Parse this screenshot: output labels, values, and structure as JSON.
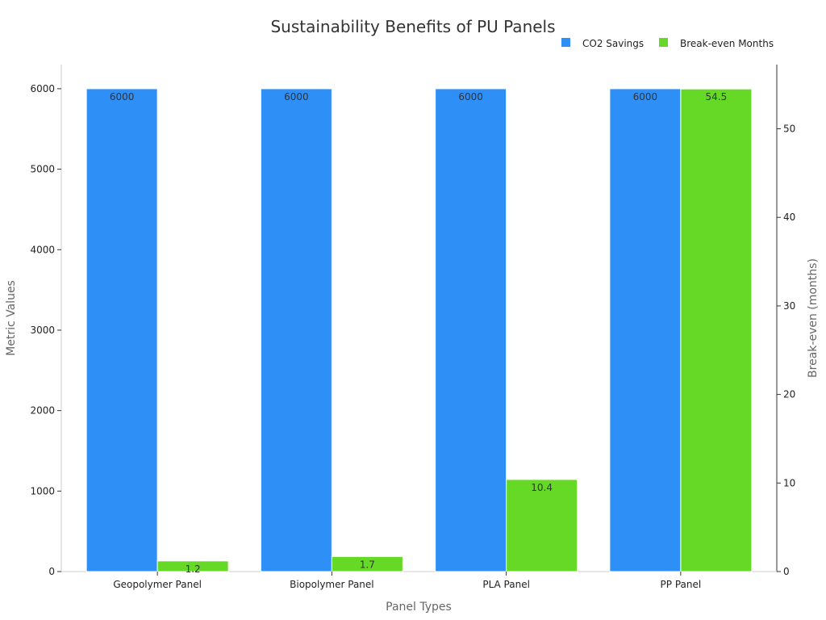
{
  "chart_data": {
    "type": "bar",
    "title": "Sustainability Benefits of PU Panels",
    "xlabel": "Panel Types",
    "ylabel": "Metric Values",
    "ylabel_right": "Break-even (months)",
    "categories": [
      "Geopolymer Panel",
      "Biopolymer Panel",
      "PLA Panel",
      "PP Panel"
    ],
    "ylim": [
      0,
      6300
    ],
    "ylim_right": [
      0,
      57.25
    ],
    "yticks": [
      0,
      1000,
      2000,
      3000,
      4000,
      5000,
      6000
    ],
    "yticks_right": [
      0,
      10,
      20,
      30,
      40,
      50
    ],
    "grid": false,
    "legend_position": "top-right",
    "series": [
      {
        "name": "CO2 Savings",
        "axis": "left",
        "color": "#2e8ff7",
        "values": [
          6000,
          6000,
          6000,
          6000
        ],
        "labels": [
          "6000",
          "6000",
          "6000",
          "6000"
        ]
      },
      {
        "name": "Break-even Months",
        "axis": "right",
        "color": "#66d926",
        "values": [
          1.2,
          1.7,
          10.4,
          54.5
        ],
        "labels": [
          "1.2",
          "1.7",
          "10.4",
          "54.5"
        ]
      }
    ]
  }
}
